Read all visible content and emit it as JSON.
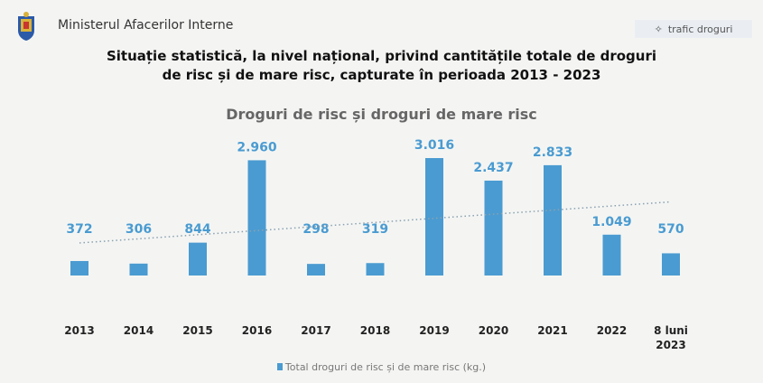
{
  "header": {
    "org": "Ministerul Afacerilor Interne",
    "tag": "trafic droguri",
    "tag_icon": "sparkle-icon"
  },
  "title_line1": "Situație statistică, la nivel național, privind cantitățile totale de droguri",
  "title_line2": "de risc și de mare risc, capturate în perioada 2013 - 2023",
  "colors": {
    "bar": "#4a9bd1",
    "label": "#4a9bd1",
    "trend": "#8aa0b0"
  },
  "chart_data": {
    "type": "bar",
    "title": "Droguri de risc și droguri de mare risc",
    "categories": [
      "2013",
      "2014",
      "2015",
      "2016",
      "2017",
      "2018",
      "2019",
      "2020",
      "2021",
      "2022",
      "8 luni 2023"
    ],
    "series": [
      {
        "name": "Total droguri de risc și de mare risc (kg.)",
        "values": [
          372,
          306,
          844,
          2960,
          298,
          319,
          3016,
          2437,
          2833,
          1049,
          570
        ]
      }
    ],
    "data_labels": [
      "372",
      "306",
      "844",
      "2.960",
      "298",
      "319",
      "3.016",
      "2.437",
      "2.833",
      "1.049",
      "570"
    ],
    "trendline": "linear, dotted",
    "legend": "bottom",
    "grid": false
  }
}
